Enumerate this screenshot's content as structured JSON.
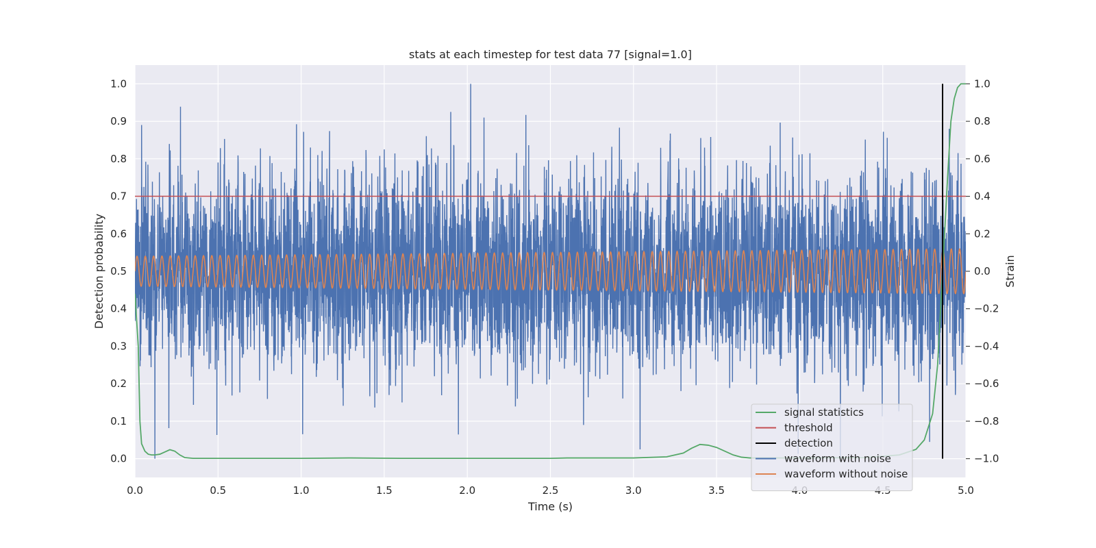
{
  "chart_data": {
    "type": "line",
    "title": "stats at each timestep for test data 77 [signal=1.0]",
    "xlabel": "Time (s)",
    "ylabel_left": "Detection probability",
    "ylabel_right": "Strain",
    "xlim": [
      0.0,
      5.0
    ],
    "ylim_left": [
      -0.05,
      1.05
    ],
    "ylim_right": [
      -1.1,
      1.1
    ],
    "x_ticks": [
      "0.0",
      "0.5",
      "1.0",
      "1.5",
      "2.0",
      "2.5",
      "3.0",
      "3.5",
      "4.0",
      "4.5",
      "5.0"
    ],
    "y_ticks_left": [
      "0.0",
      "0.1",
      "0.2",
      "0.3",
      "0.4",
      "0.5",
      "0.6",
      "0.7",
      "0.8",
      "0.9",
      "1.0"
    ],
    "y_ticks_right": [
      "−1.0",
      "−0.8",
      "−0.6",
      "−0.4",
      "−0.2",
      "0.0",
      "0.2",
      "0.4",
      "0.6",
      "0.8",
      "1.0"
    ],
    "grid": true,
    "legend_position": "lower right",
    "colors": {
      "signal_statistics": "#55a868",
      "threshold": "#c44e52",
      "detection": "#000000",
      "waveform_with_noise": "#4c72b0",
      "waveform_without_noise": "#dd8452",
      "background": "#eaeaf2",
      "grid": "#ffffff"
    },
    "series": [
      {
        "name": "signal statistics",
        "axis": "left",
        "x": [
          0.0,
          0.02,
          0.03,
          0.04,
          0.06,
          0.08,
          0.1,
          0.12,
          0.15,
          0.18,
          0.21,
          0.24,
          0.27,
          0.3,
          0.35,
          0.5,
          1.0,
          1.3,
          1.6,
          2.0,
          2.5,
          2.6,
          3.0,
          3.2,
          3.3,
          3.35,
          3.4,
          3.45,
          3.5,
          3.55,
          3.6,
          3.65,
          3.7,
          4.0,
          4.4,
          4.6,
          4.7,
          4.75,
          4.8,
          4.83,
          4.86,
          4.89,
          4.91,
          4.93,
          4.95,
          4.97,
          5.0
        ],
        "y": [
          0.44,
          0.3,
          0.1,
          0.04,
          0.02,
          0.012,
          0.01,
          0.01,
          0.012,
          0.018,
          0.024,
          0.02,
          0.01,
          0.003,
          0.001,
          0.001,
          0.001,
          0.002,
          0.001,
          0.001,
          0.001,
          0.002,
          0.002,
          0.005,
          0.015,
          0.028,
          0.038,
          0.036,
          0.03,
          0.02,
          0.01,
          0.004,
          0.002,
          0.002,
          0.003,
          0.01,
          0.025,
          0.05,
          0.12,
          0.25,
          0.5,
          0.75,
          0.9,
          0.96,
          0.99,
          1.0,
          1.0
        ]
      },
      {
        "name": "threshold",
        "axis": "left",
        "value": 0.7
      },
      {
        "name": "detection",
        "axis": "left",
        "x": 4.86,
        "y": [
          0.0,
          1.0
        ]
      },
      {
        "name": "waveform with noise",
        "axis": "right",
        "description_of_values": "noisy strain around 0 with std ≈ 0.25, range about −1.0 to 1.0",
        "peaks_x": [
          0.04,
          0.12,
          0.5,
          1.1,
          1.5,
          1.9,
          2.02,
          2.1,
          2.7,
          3.04,
          4.9
        ],
        "peaks_y": [
          0.78,
          -1.0,
          0.58,
          0.62,
          0.65,
          0.85,
          1.0,
          0.82,
          -0.82,
          -0.95,
          0.76
        ],
        "std": 0.25
      },
      {
        "name": "waveform without noise",
        "axis": "right",
        "description_of_values": "sinusoid, ~20 Hz, amplitude ≈ 0.08 at t=0 growing to ≈ 0.12 at t=5",
        "frequency": 20,
        "amplitude_start": 0.08,
        "amplitude_end": 0.12
      }
    ]
  }
}
